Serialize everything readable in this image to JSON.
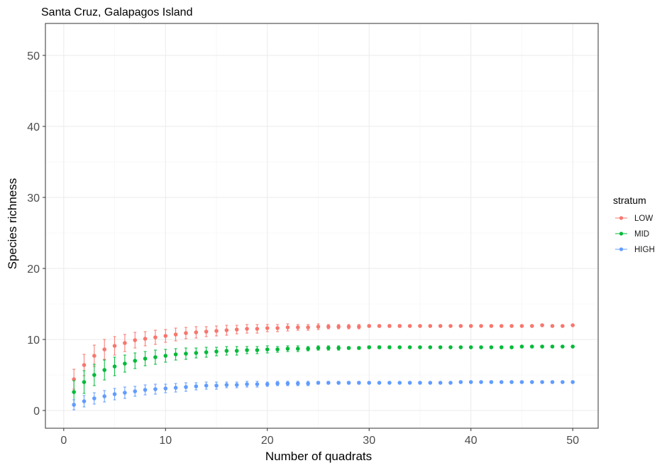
{
  "chart_data": {
    "type": "scatter",
    "title": "Santa Cruz, Galapagos Island",
    "xlabel": "Number of quadrats",
    "ylabel": "Species richness",
    "xlim": [
      -1.8,
      52.5
    ],
    "ylim": [
      -2.5,
      54.5
    ],
    "xticks": [
      0,
      10,
      20,
      30,
      40,
      50
    ],
    "yticks": [
      0,
      10,
      20,
      30,
      40,
      50
    ],
    "grid": true,
    "legend": {
      "title": "stratum",
      "position": "right"
    },
    "x": [
      1,
      2,
      3,
      4,
      5,
      6,
      7,
      8,
      9,
      10,
      11,
      12,
      13,
      14,
      15,
      16,
      17,
      18,
      19,
      20,
      21,
      22,
      23,
      24,
      25,
      26,
      27,
      28,
      29,
      30,
      31,
      32,
      33,
      34,
      35,
      36,
      37,
      38,
      39,
      40,
      41,
      42,
      43,
      44,
      45,
      46,
      47,
      48,
      49,
      50
    ],
    "series": [
      {
        "name": "LOW",
        "color": "#F8766D",
        "values": [
          4.4,
          6.4,
          7.7,
          8.6,
          9.1,
          9.5,
          9.9,
          10.1,
          10.3,
          10.5,
          10.7,
          10.9,
          11.0,
          11.1,
          11.2,
          11.3,
          11.4,
          11.5,
          11.5,
          11.6,
          11.6,
          11.7,
          11.7,
          11.7,
          11.8,
          11.8,
          11.8,
          11.8,
          11.8,
          11.9,
          11.9,
          11.9,
          11.9,
          11.9,
          11.9,
          11.9,
          11.9,
          11.9,
          11.9,
          11.9,
          11.9,
          11.9,
          11.9,
          11.9,
          11.9,
          11.9,
          12.0,
          11.9,
          11.9,
          12.0
        ],
        "err": [
          1.4,
          1.5,
          1.5,
          1.4,
          1.3,
          1.2,
          1.1,
          1.0,
          1.0,
          0.9,
          0.9,
          0.8,
          0.8,
          0.7,
          0.7,
          0.7,
          0.6,
          0.6,
          0.6,
          0.5,
          0.5,
          0.5,
          0.4,
          0.4,
          0.4,
          0.3,
          0.3,
          0.3,
          0.3,
          0.2,
          0.2,
          0.2,
          0.2,
          0.1,
          0.1,
          0.1,
          0.1,
          0.1,
          0.1,
          0,
          0,
          0,
          0,
          0,
          0,
          0,
          0,
          0,
          0,
          0
        ]
      },
      {
        "name": "MID",
        "color": "#00BA38",
        "values": [
          2.6,
          4.0,
          5.0,
          5.7,
          6.2,
          6.6,
          7.0,
          7.3,
          7.5,
          7.7,
          7.9,
          8.0,
          8.1,
          8.2,
          8.3,
          8.4,
          8.4,
          8.5,
          8.5,
          8.6,
          8.6,
          8.7,
          8.7,
          8.7,
          8.8,
          8.8,
          8.8,
          8.8,
          8.8,
          8.9,
          8.9,
          8.9,
          8.9,
          8.9,
          8.9,
          8.9,
          8.9,
          8.9,
          8.9,
          8.9,
          8.9,
          8.9,
          8.9,
          8.9,
          9.0,
          9.0,
          9.0,
          9.0,
          9.0,
          9.0
        ],
        "err": [
          1.6,
          1.6,
          1.5,
          1.4,
          1.3,
          1.2,
          1.1,
          1.0,
          1.0,
          0.9,
          0.8,
          0.8,
          0.7,
          0.7,
          0.6,
          0.6,
          0.6,
          0.5,
          0.5,
          0.5,
          0.4,
          0.4,
          0.4,
          0.3,
          0.3,
          0.3,
          0.3,
          0.2,
          0.2,
          0.2,
          0.2,
          0.2,
          0.1,
          0.1,
          0.1,
          0.1,
          0.1,
          0,
          0,
          0,
          0,
          0,
          0,
          0,
          0,
          0,
          0,
          0,
          0,
          0
        ]
      },
      {
        "name": "HIGH",
        "color": "#619CFF",
        "values": [
          0.8,
          1.3,
          1.7,
          2.0,
          2.3,
          2.5,
          2.7,
          2.9,
          3.0,
          3.1,
          3.2,
          3.3,
          3.4,
          3.5,
          3.5,
          3.6,
          3.6,
          3.7,
          3.7,
          3.7,
          3.8,
          3.8,
          3.8,
          3.8,
          3.9,
          3.9,
          3.9,
          3.9,
          3.9,
          3.9,
          3.9,
          3.9,
          3.9,
          3.9,
          3.9,
          3.9,
          3.9,
          3.9,
          4.0,
          4.0,
          4.0,
          4.0,
          4.0,
          4.0,
          4.0,
          4.0,
          4.0,
          4.0,
          4.0,
          4.0
        ],
        "err": [
          0.7,
          0.8,
          0.8,
          0.8,
          0.8,
          0.8,
          0.7,
          0.7,
          0.7,
          0.6,
          0.6,
          0.6,
          0.5,
          0.5,
          0.5,
          0.4,
          0.4,
          0.4,
          0.4,
          0.3,
          0.3,
          0.3,
          0.3,
          0.3,
          0.2,
          0.2,
          0.2,
          0.2,
          0.2,
          0.1,
          0.1,
          0.1,
          0.1,
          0.1,
          0.1,
          0.1,
          0,
          0,
          0,
          0,
          0,
          0,
          0,
          0,
          0,
          0,
          0,
          0,
          0,
          0
        ]
      }
    ]
  }
}
